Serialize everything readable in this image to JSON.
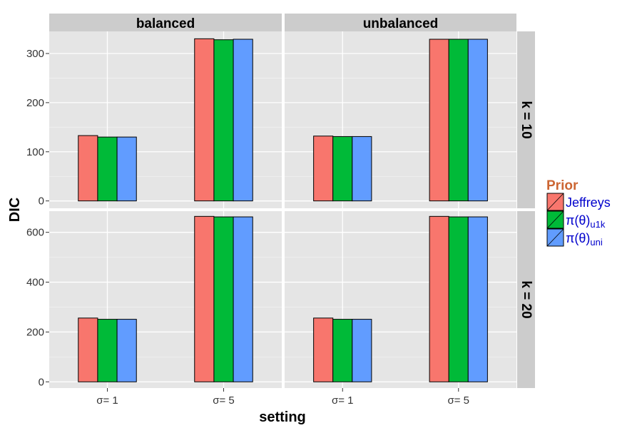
{
  "chart_data": {
    "type": "bar",
    "xlabel": "setting",
    "ylabel": "DIC",
    "categories": [
      "σ= 1",
      "σ= 5"
    ],
    "column_facets": [
      "balanced",
      "unbalanced"
    ],
    "row_facets": [
      "k = 10",
      "k = 20"
    ],
    "legend": {
      "title": "Prior",
      "placement": "right",
      "entries": [
        {
          "key": "jeffreys",
          "label": "Jeffreys",
          "color": "#F8766D"
        },
        {
          "key": "u1k",
          "label_main": "π(θ)",
          "label_sub": "u1k",
          "color": "#00BA38"
        },
        {
          "key": "uni",
          "label_main": "π(θ)",
          "label_sub": "uni",
          "color": "#619CFF"
        }
      ]
    },
    "rows": [
      {
        "ylim": [
          -15,
          345
        ],
        "yticks": [
          0,
          100,
          200,
          300
        ],
        "panels": {
          "balanced": {
            "series": [
              {
                "key": "jeffreys",
                "values": [
                  133,
                  330
                ]
              },
              {
                "key": "u1k",
                "values": [
                  130,
                  328
                ]
              },
              {
                "key": "uni",
                "values": [
                  130,
                  329
                ]
              }
            ]
          },
          "unbalanced": {
            "series": [
              {
                "key": "jeffreys",
                "values": [
                  132,
                  329
                ]
              },
              {
                "key": "u1k",
                "values": [
                  131,
                  329
                ]
              },
              {
                "key": "uni",
                "values": [
                  131,
                  329
                ]
              }
            ]
          }
        }
      },
      {
        "ylim": [
          -25,
          685
        ],
        "yticks": [
          0,
          200,
          400,
          600
        ],
        "panels": {
          "balanced": {
            "series": [
              {
                "key": "jeffreys",
                "values": [
                  256,
                  664
                ]
              },
              {
                "key": "u1k",
                "values": [
                  251,
                  662
                ]
              },
              {
                "key": "uni",
                "values": [
                  251,
                  662
                ]
              }
            ]
          },
          "unbalanced": {
            "series": [
              {
                "key": "jeffreys",
                "values": [
                  256,
                  664
                ]
              },
              {
                "key": "u1k",
                "values": [
                  251,
                  662
                ]
              },
              {
                "key": "uni",
                "values": [
                  251,
                  662
                ]
              }
            ]
          }
        }
      }
    ],
    "grid": true,
    "colors": {
      "panel_bg": "#E5E5E5",
      "strip_bg": "#CCCCCC",
      "grid_major": "#FFFFFF",
      "grid_minor": "#F2F2F2",
      "legend_title": "#CC6633",
      "legend_text": "#0000CC",
      "bar_outline": "#000000"
    }
  }
}
